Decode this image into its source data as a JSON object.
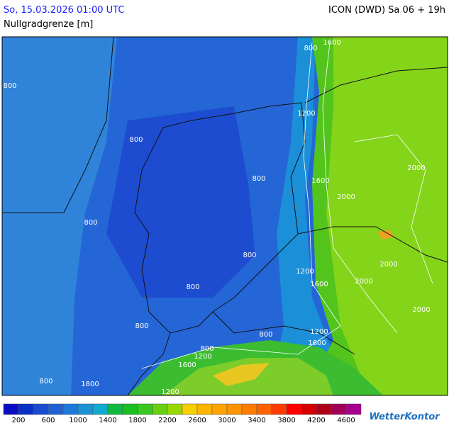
{
  "header": {
    "date": "So, 15.03.2026 01:00 UTC",
    "model": "ICON (DWD) Sa 06 + 19h",
    "parameter": "Nullgradgrenze [m]"
  },
  "map": {
    "contour_labels": [
      "800",
      "800",
      "1600",
      "1200",
      "800",
      "800",
      "1600",
      "2000",
      "2000",
      "800",
      "800",
      "1200",
      "2000",
      "1600",
      "2000",
      "800",
      "800",
      "2000",
      "1200",
      "800",
      "800",
      "1600",
      "1200",
      "1600",
      "800",
      "1800",
      "1200"
    ]
  },
  "legend": {
    "colors": [
      "#0c0cc4",
      "#0a2ec8",
      "#1a4ad0",
      "#1f60d4",
      "#1e78d8",
      "#1a92d4",
      "#10aad0",
      "#10b840",
      "#18c020",
      "#38c820",
      "#68d010",
      "#98d800",
      "#f8d000",
      "#ffb400",
      "#ffa400",
      "#ff9400",
      "#ff7c00",
      "#ff6000",
      "#ff3c00",
      "#ff0000",
      "#d40000",
      "#b00018",
      "#a00058",
      "#a8008c"
    ],
    "ticks": [
      200,
      600,
      1000,
      1400,
      1800,
      2200,
      2600,
      3000,
      3400,
      3800,
      4200,
      4600
    ]
  },
  "brand": "WetterKontor"
}
